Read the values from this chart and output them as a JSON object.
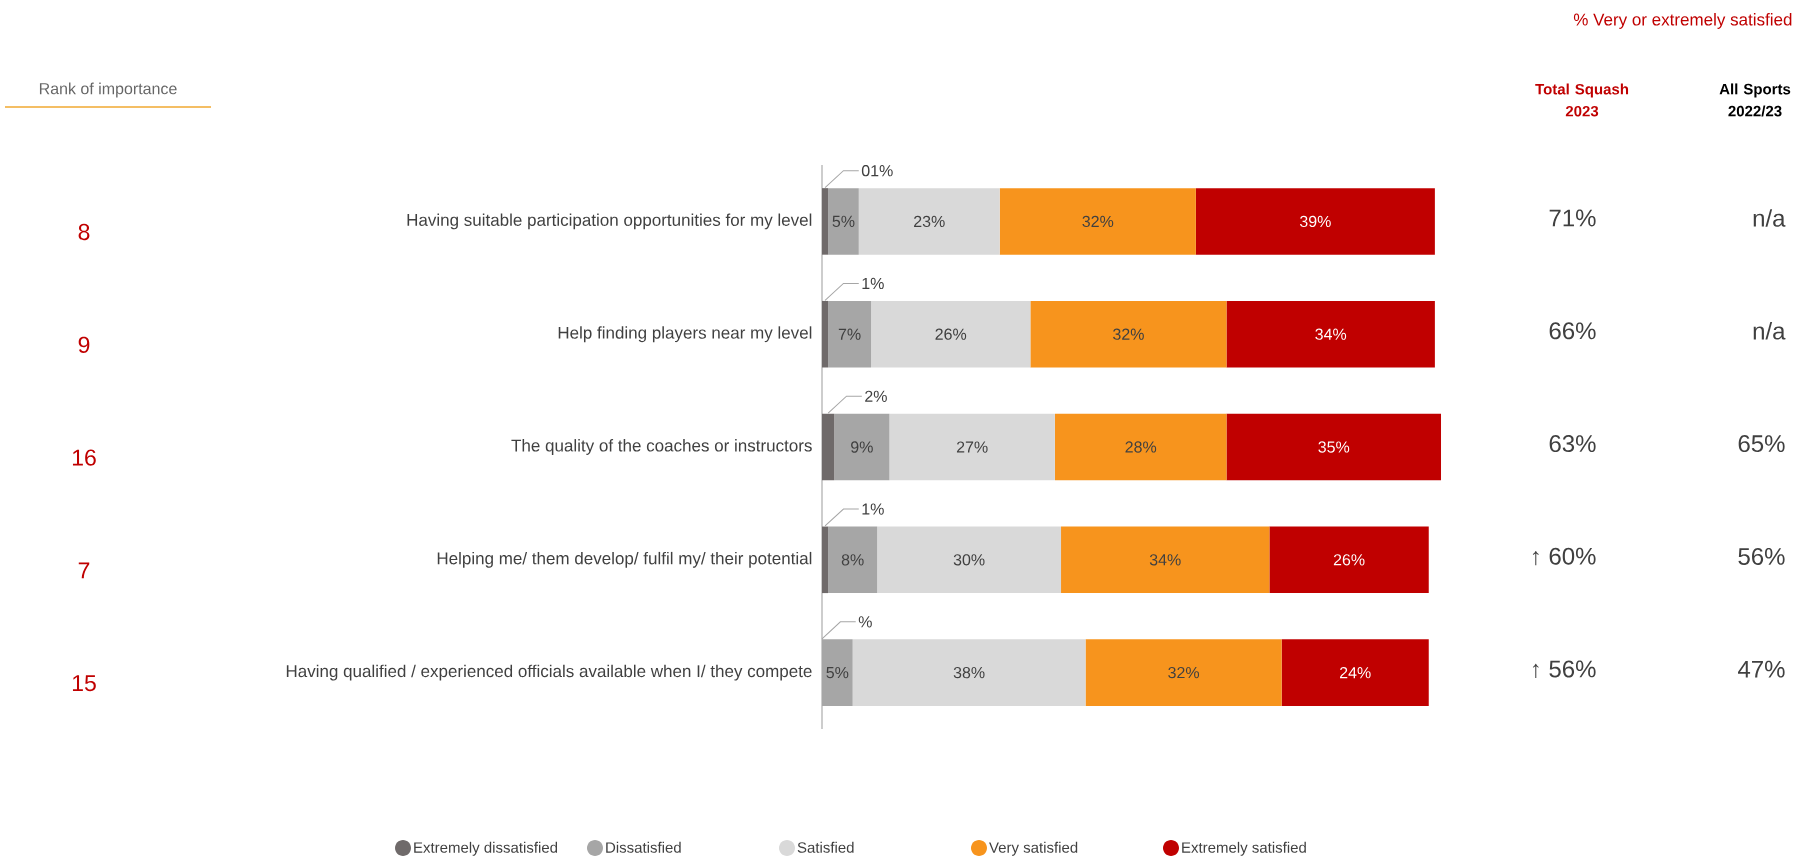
{
  "chart_data": {
    "type": "bar",
    "orientation": "horizontal",
    "stacked": true,
    "categories": [
      "Having suitable participation opportunities for my level",
      "Help finding players near my level",
      "The quality of the coaches or instructors",
      "Helping me/ them develop/ fulfil my/ their potential",
      "Having qualified / experienced officials available when I/ they compete"
    ],
    "series": [
      {
        "name": "Extremely dissatisfied",
        "color": "#6f6a6a",
        "values": [
          1,
          1,
          2,
          1,
          0
        ],
        "value_labels": [
          "01%",
          "1%",
          "2%",
          "1%",
          null
        ]
      },
      {
        "name": "Dissatisfied",
        "color": "#a6a6a6",
        "values": [
          5,
          7,
          9,
          8,
          5
        ],
        "value_labels": [
          "5%",
          "7%",
          "9%",
          "8%",
          "5%"
        ]
      },
      {
        "name": "Satisfied",
        "color": "#d9d9d9",
        "values": [
          23,
          26,
          27,
          30,
          38
        ],
        "value_labels": [
          "23%",
          "26%",
          "27%",
          "30%",
          "38%"
        ]
      },
      {
        "name": "Very satisfied",
        "color": "#f7941d",
        "values": [
          32,
          32,
          28,
          34,
          32
        ],
        "value_labels": [
          "32%",
          "32%",
          "28%",
          "34%",
          "32%"
        ]
      },
      {
        "name": "Extremely satisfied",
        "color": "#c00000",
        "values": [
          39,
          34,
          35,
          26,
          24
        ],
        "value_labels": [
          "39%",
          "34%",
          "35%",
          "26%",
          "24%"
        ]
      }
    ],
    "xlim": [
      0,
      101
    ],
    "tick_labels": "y",
    "legend": "bottom",
    "annotations": [
      "% Very or extremely satisfied",
      "Rank of importance",
      "Total Squash 2023",
      "All Sports 2022/23",
      "8",
      "9",
      "16",
      "7",
      "15",
      "71%",
      "66%",
      "63%",
      "↑ 60%",
      "↑ 56%",
      "n/a",
      "n/a",
      "65%",
      "56%",
      "47%",
      "%"
    ]
  }
}
